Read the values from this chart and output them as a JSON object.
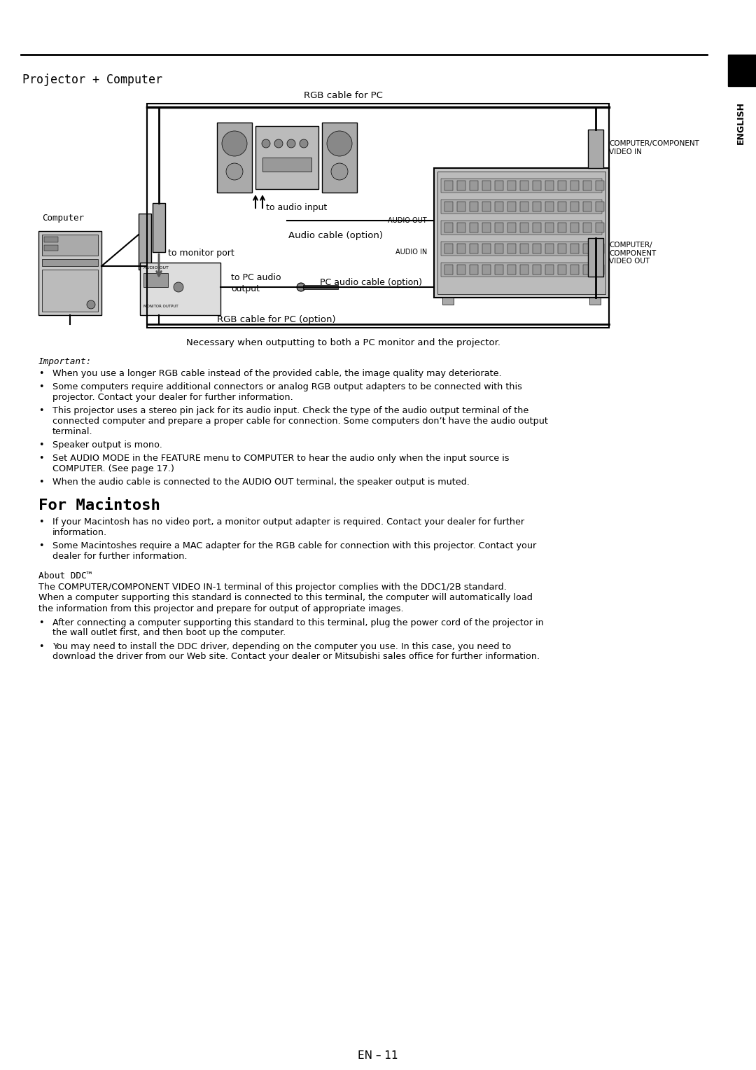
{
  "page_title": "Projector + Computer",
  "section_english": "ENGLISH",
  "page_number": "EN – 11",
  "bg_color": "#ffffff",
  "body_font_size": 9.2,
  "important_label": "Important:",
  "important_bullets": [
    "When you use a longer RGB cable instead of the provided cable, the image quality may deteriorate.",
    "Some computers require additional connectors or analog RGB output adapters to be connected with this\nprojector. Contact your dealer for further information.",
    "This projector uses a stereo pin jack for its audio input. Check the type of the audio output terminal of the\nconnected computer and prepare a proper cable for connection. Some computers don’t have the audio output\nterminal.",
    "Speaker output is mono.",
    "Set AUDIO MODE in the FEATURE menu to COMPUTER to hear the audio only when the input source is\nCOMPUTER. (See page 17.)",
    "When the audio cable is connected to the AUDIO OUT terminal, the speaker output is muted."
  ],
  "mac_section_title": "For Macintosh",
  "mac_bullets": [
    "If your Macintosh has no video port, a monitor output adapter is required. Contact your dealer for further\ninformation.",
    "Some Macintoshes require a MAC adapter for the RGB cable for connection with this projector. Contact your\ndealer for further information."
  ],
  "ddc_title": "About DDC™",
  "ddc_body": "The COMPUTER/COMPONENT VIDEO IN-1 terminal of this projector complies with the DDC1/2B standard.\nWhen a computer supporting this standard is connected to this terminal, the computer will automatically load\nthe information from this projector and prepare for output of appropriate images.",
  "ddc_bullets": [
    "After connecting a computer supporting this standard to this terminal, plug the power cord of the projector in\nthe wall outlet first, and then boot up the computer.",
    "You may need to install the DDC driver, depending on the computer you use. In this case, you need to\ndownload the driver from our Web site. Contact your dealer or Mitsubishi sales office for further information."
  ],
  "diagram_caption": "Necessary when outputting to both a PC monitor and the projector.",
  "rgb_cable_label": "RGB cable for PC",
  "audio_input_label": "to audio input",
  "audio_cable_label": "Audio cable (option)",
  "audio_out_label": "AUDIO OUT",
  "audio_in_label": "AUDIO IN",
  "computer_label": "Computer",
  "monitor_port_label": "to monitor port",
  "pc_audio_output_label": "to PC audio\noutput",
  "pc_audio_cable_label": "PC audio cable (option)",
  "rgb_cable_pc_option_label": "RGB cable for PC (option)",
  "computer_component_video_in": "COMPUTER/COMPONENT\nVIDEO IN",
  "computer_component_video_out": "COMPUTER/\nCOMPONENT\nVIDEO OUT"
}
